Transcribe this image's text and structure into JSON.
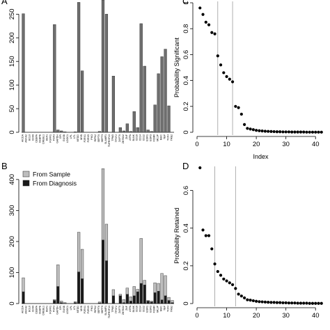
{
  "panels": {
    "a": {
      "letter": "A"
    },
    "b": {
      "letter": "B"
    },
    "c": {
      "letter": "C"
    },
    "d": {
      "letter": "D"
    }
  },
  "chart_data": [
    {
      "id": "A",
      "type": "bar",
      "ylim": [
        0,
        280
      ],
      "yticks": [
        0,
        50,
        100,
        150,
        200,
        250
      ],
      "bar_color": "#6e6e6e",
      "categories": [
        "AICDA",
        "ANXA2",
        "BCL6",
        "CD99",
        "CEBPA",
        "CEBPB",
        "CREBL1",
        "DEF1",
        "FGFR1",
        "FGF3",
        "GAPDH",
        "GPI",
        "GUSB",
        "LDOC1",
        "LPL",
        "LTL",
        "MTDD",
        "MYB",
        "P2RX1",
        "P2RX5",
        "PIK3",
        "RIPK2",
        "SEPT6",
        "SEPT9",
        "SLAMF1",
        "TNFRSF13",
        "TPM3",
        "TPST2",
        "ZAP70",
        "ZBTB32",
        "ZNF",
        "ATPA",
        "BLNK",
        "CD10",
        "CD14",
        "CD22",
        "EGR1",
        "EGR3",
        "FCMR",
        "MCJP",
        "MUC",
        "TBP",
        "TCF4",
        "TRB2"
      ],
      "values": [
        251,
        0,
        0,
        0,
        0,
        0,
        0,
        0,
        0,
        228,
        5,
        3,
        1,
        0,
        0,
        1,
        275,
        130,
        0,
        0,
        0,
        0,
        2,
        290,
        250,
        0,
        119,
        0,
        10,
        3,
        18,
        2,
        44,
        10,
        230,
        140,
        5,
        2,
        58,
        124,
        160,
        176,
        56,
        0
      ]
    },
    {
      "id": "B",
      "type": "bar",
      "stacked": true,
      "ylim": [
        0,
        440
      ],
      "yticks": [
        0,
        100,
        200,
        300,
        400
      ],
      "categories": [
        "AICDA",
        "ANXA2",
        "BCL6",
        "CD99",
        "CEBPA",
        "CEBPB",
        "CREBL1",
        "DEF1",
        "FGFR1",
        "FGF3",
        "GAPDH",
        "GPI",
        "GUSB",
        "LDOC1",
        "LPL",
        "LTL",
        "MTDD",
        "MYB",
        "P2RX1",
        "P2RX5",
        "PIK3",
        "RIPK2",
        "SEPT6",
        "SEPT9",
        "SLAMF1",
        "TNFRSF13",
        "TPM3",
        "TPST2",
        "ZAP70",
        "ZBTB32",
        "ZNF",
        "ATPA",
        "BLNK",
        "CD10",
        "CD14",
        "CD22",
        "EGR1",
        "EGR3",
        "FCMR",
        "MCJP",
        "MUC",
        "TBP",
        "TCF4",
        "TRB2"
      ],
      "series": [
        {
          "name": "From Diagnosis",
          "color": "#1a1a1a",
          "values": [
            38,
            0,
            0,
            0,
            0,
            0,
            0,
            0,
            0,
            10,
            55,
            3,
            1,
            0,
            0,
            3,
            102,
            80,
            0,
            0,
            0,
            0,
            2,
            205,
            138,
            0,
            25,
            0,
            25,
            3,
            30,
            8,
            25,
            38,
            65,
            60,
            8,
            5,
            35,
            40,
            12,
            25,
            10,
            3
          ]
        },
        {
          "name": "From Sample",
          "color": "#bdbdbd",
          "values": [
            45,
            0,
            0,
            0,
            0,
            0,
            0,
            0,
            0,
            3,
            70,
            5,
            2,
            0,
            0,
            3,
            128,
            95,
            0,
            0,
            0,
            0,
            3,
            230,
            118,
            0,
            20,
            0,
            5,
            10,
            20,
            14,
            30,
            8,
            145,
            15,
            2,
            3,
            32,
            25,
            85,
            65,
            10,
            7
          ]
        }
      ],
      "legend": {
        "position": "top-left"
      }
    },
    {
      "id": "C",
      "type": "scatter",
      "xlabel": "Index",
      "ylabel": "Probability Significant",
      "xlim": [
        0,
        43
      ],
      "ylim": [
        0,
        1
      ],
      "xticks": [
        0,
        10,
        20,
        30,
        40
      ],
      "yticks": [
        0.0,
        0.2,
        0.4,
        0.6,
        0.8,
        1.0
      ],
      "vlines": [
        7,
        12
      ],
      "x": [
        1,
        2,
        3,
        4,
        5,
        6,
        7,
        8,
        9,
        10,
        11,
        12,
        13,
        14,
        15,
        16,
        17,
        18,
        19,
        20,
        21,
        22,
        23,
        24,
        25,
        26,
        27,
        28,
        29,
        30,
        31,
        32,
        33,
        34,
        35,
        36,
        37,
        38,
        39,
        40,
        41,
        42
      ],
      "y": [
        0.96,
        0.91,
        0.85,
        0.83,
        0.77,
        0.76,
        0.59,
        0.52,
        0.46,
        0.43,
        0.41,
        0.39,
        0.2,
        0.19,
        0.14,
        0.06,
        0.03,
        0.025,
        0.02,
        0.015,
        0.012,
        0.01,
        0.008,
        0.007,
        0.006,
        0.005,
        0.004,
        0.004,
        0.003,
        0.003,
        0.003,
        0.002,
        0.002,
        0.002,
        0.002,
        0.002,
        0.001,
        0.001,
        0.001,
        0.001,
        0.001,
        0.001
      ]
    },
    {
      "id": "D",
      "type": "scatter",
      "xlabel": "",
      "ylabel": "Probability Retained",
      "xlim": [
        0,
        43
      ],
      "ylim": [
        0,
        0.72
      ],
      "xticks": [
        0,
        10,
        20,
        30,
        40
      ],
      "yticks": [
        0.0,
        0.2,
        0.4,
        0.6
      ],
      "vlines": [
        6,
        13
      ],
      "x": [
        1,
        2,
        3,
        4,
        5,
        6,
        7,
        8,
        9,
        10,
        11,
        12,
        13,
        14,
        15,
        16,
        17,
        18,
        19,
        20,
        21,
        22,
        23,
        24,
        25,
        26,
        27,
        28,
        29,
        30,
        31,
        32,
        33,
        34,
        35,
        36,
        37,
        38,
        39,
        40,
        41,
        42
      ],
      "y": [
        0.72,
        0.39,
        0.36,
        0.36,
        0.29,
        0.21,
        0.17,
        0.15,
        0.13,
        0.12,
        0.11,
        0.1,
        0.08,
        0.05,
        0.04,
        0.03,
        0.02,
        0.018,
        0.015,
        0.012,
        0.01,
        0.009,
        0.008,
        0.007,
        0.006,
        0.006,
        0.005,
        0.005,
        0.004,
        0.004,
        0.003,
        0.003,
        0.003,
        0.002,
        0.002,
        0.002,
        0.002,
        0.001,
        0.001,
        0.001,
        0.001,
        0.001
      ]
    }
  ]
}
